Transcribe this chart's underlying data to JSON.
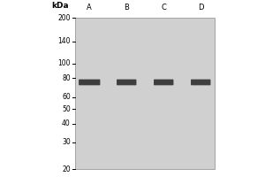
{
  "background_color": "#d0d0d0",
  "outer_background": "#ffffff",
  "kda_markers": [
    200,
    140,
    100,
    80,
    60,
    50,
    40,
    30,
    20
  ],
  "kda_label": "kDa",
  "lane_labels": [
    "A",
    "B",
    "C",
    "D"
  ],
  "band_kda": 75,
  "band_color": "#2a2a2a",
  "band_alpha": 0.88,
  "marker_fontsize": 5.5,
  "label_fontsize": 6.0,
  "kda_header_fontsize": 6.5
}
